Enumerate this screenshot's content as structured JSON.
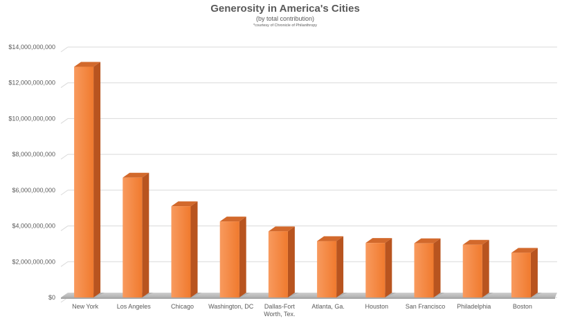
{
  "chart_data": {
    "type": "bar",
    "title": "Generosity in America's Cities",
    "subtitle": "(by total contribution)",
    "note": "*courtesy of Chronicle of Philanthropy",
    "xlabel": "",
    "ylabel": "",
    "categories": [
      "New York",
      "Los Angeles",
      "Chicago",
      "Washington, DC",
      "Dallas-Fort Worth, Tex.",
      "Atlanta, Ga.",
      "Houston",
      "San Francisco",
      "Philadelphia",
      "Boston"
    ],
    "category_lines": [
      [
        "New York"
      ],
      [
        "Los Angeles"
      ],
      [
        "Chicago"
      ],
      [
        "Washington, DC"
      ],
      [
        "Dallas-Fort",
        "Worth, Tex."
      ],
      [
        "Atlanta, Ga."
      ],
      [
        "Houston"
      ],
      [
        "San Francisco"
      ],
      [
        "Philadelphia"
      ],
      [
        "Boston"
      ]
    ],
    "values": [
      12900000000,
      6700000000,
      5100000000,
      4250000000,
      3700000000,
      3150000000,
      3050000000,
      3030000000,
      2950000000,
      2500000000
    ],
    "ylim": [
      0,
      14000000000
    ],
    "yticks": [
      0,
      2000000000,
      4000000000,
      6000000000,
      8000000000,
      10000000000,
      12000000000,
      14000000000
    ],
    "ytick_labels": [
      "$0",
      "$2,000,000,000",
      "$4,000,000,000",
      "$6,000,000,000",
      "$8,000,000,000",
      "$10,000,000,000",
      "$12,000,000,000",
      "$14,000,000,000"
    ],
    "grid": true,
    "legend": "none",
    "style": "3d-column",
    "colors": {
      "bar_front_light": "#f89a5e",
      "bar_front_dark": "#f07a2e",
      "bar_side": "#b8541f",
      "bar_top": "#d2692c",
      "grid": "#d9d9d9",
      "floor_shadow": "#bfbfbf",
      "text": "#595959"
    }
  }
}
